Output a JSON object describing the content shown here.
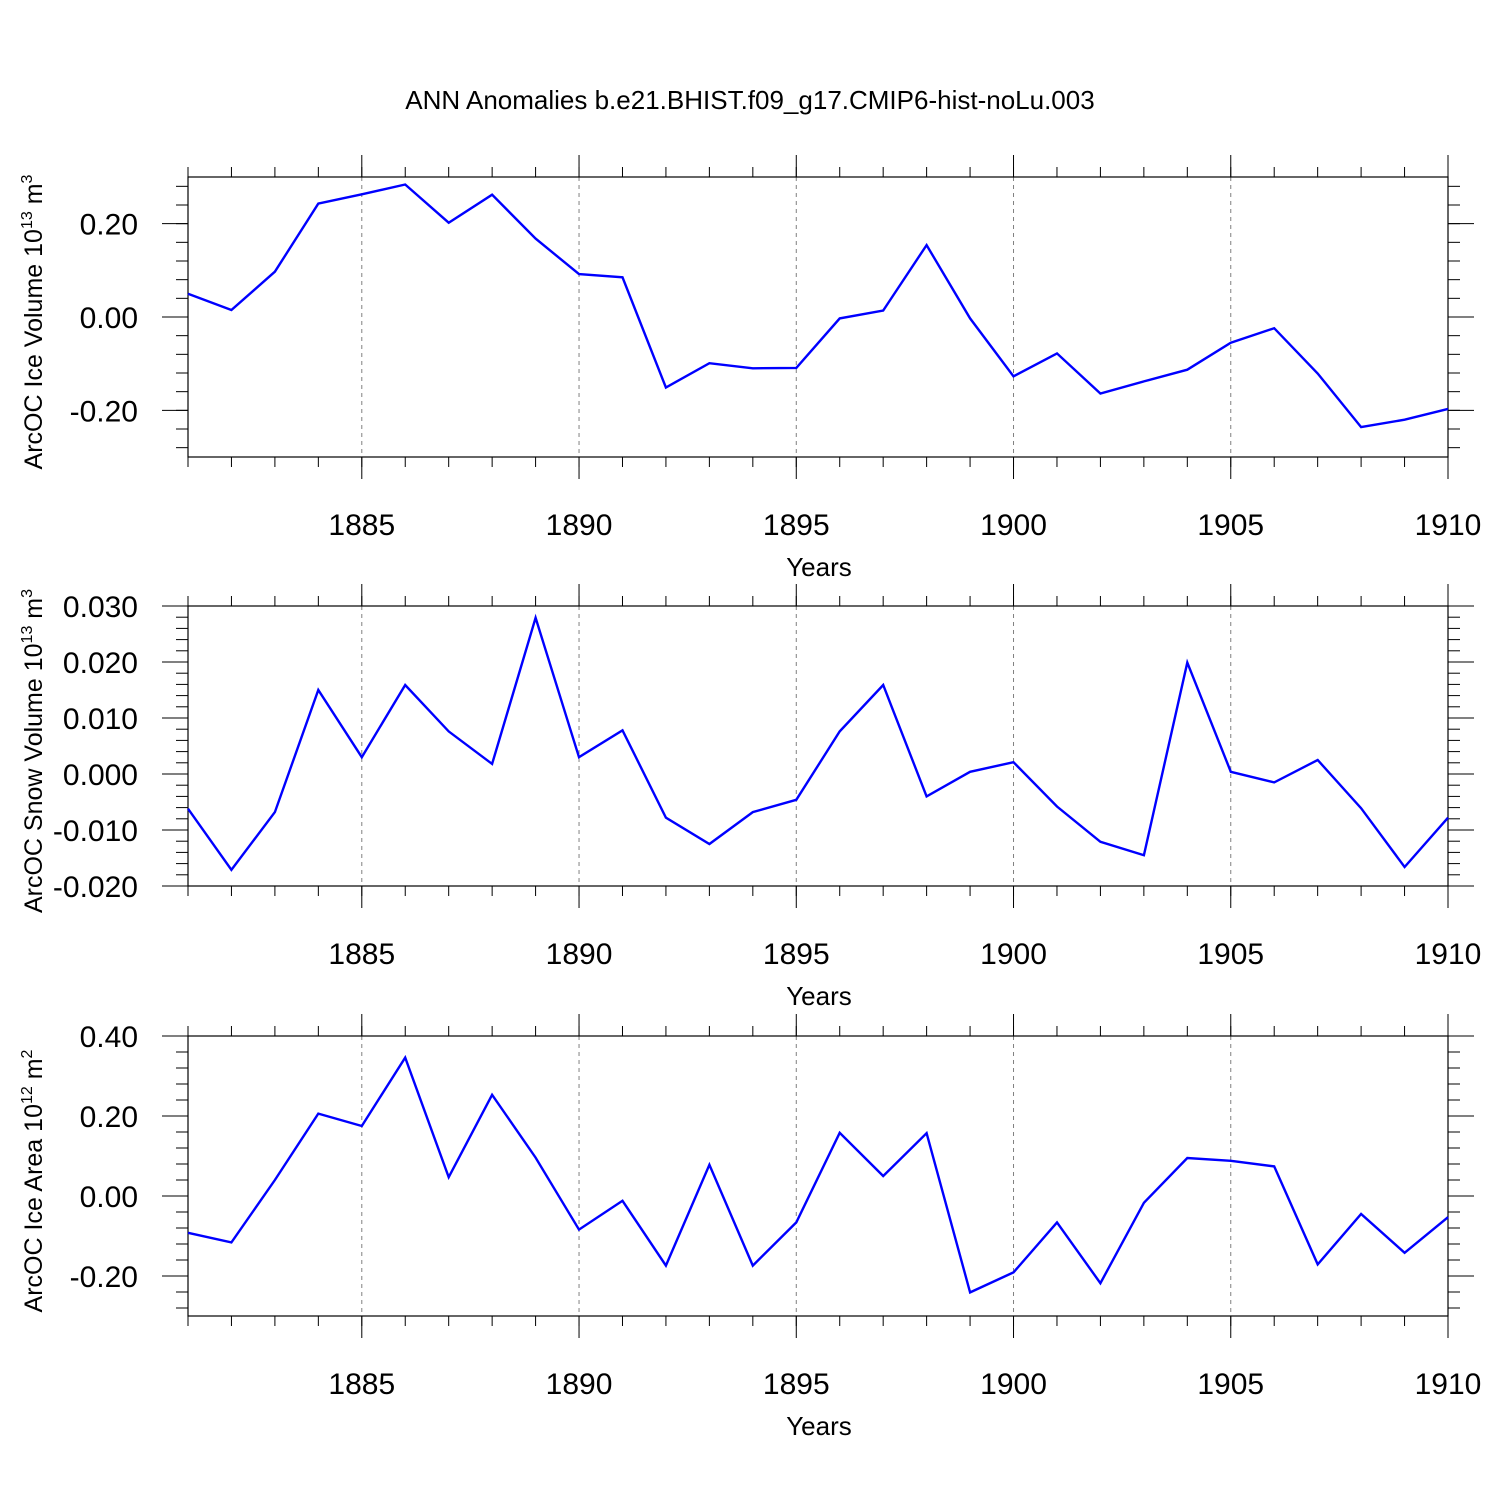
{
  "title": "ANN Anomalies b.e21.BHIST.f09_g17.CMIP6-hist-noLu.003",
  "colors": {
    "line": "#0000ff",
    "axis": "#000000",
    "grid": "#808080"
  },
  "chart_data": [
    {
      "type": "line",
      "ylabel": {
        "main": "ArcOC Ice Volume 10",
        "sup": "13",
        "unit": " m",
        "unit_sup": "3"
      },
      "xlabel": "Years",
      "xlim": [
        1881,
        1910
      ],
      "ylim": [
        -0.3,
        0.3
      ],
      "xticks": [
        1885,
        1890,
        1895,
        1900,
        1905,
        1910
      ],
      "xtick_labels": [
        "1885",
        "1890",
        "1895",
        "1900",
        "1905",
        "1910"
      ],
      "yticks": [
        0.2,
        0.0,
        -0.2
      ],
      "ytick_labels": [
        "0.20",
        "0.00",
        "-0.20"
      ],
      "grid": "vertical dashed at major x ticks",
      "x": [
        1881,
        1882,
        1883,
        1884,
        1885,
        1886,
        1887,
        1888,
        1889,
        1890,
        1891,
        1892,
        1893,
        1894,
        1895,
        1896,
        1897,
        1898,
        1899,
        1900,
        1901,
        1902,
        1903,
        1904,
        1905,
        1906,
        1907,
        1908,
        1909,
        1910
      ],
      "values": [
        0.05,
        0.015,
        0.097,
        0.243,
        0.263,
        0.284,
        0.202,
        0.262,
        0.168,
        0.092,
        0.085,
        -0.151,
        -0.099,
        -0.11,
        -0.109,
        -0.003,
        0.014,
        0.154,
        -0.003,
        -0.127,
        -0.078,
        -0.164,
        -0.138,
        -0.113,
        -0.055,
        -0.024,
        -0.121,
        -0.236,
        -0.22,
        -0.197
      ]
    },
    {
      "type": "line",
      "ylabel": {
        "main": "ArcOC Snow Volume 10",
        "sup": "13",
        "unit": " m",
        "unit_sup": "3"
      },
      "xlabel": "Years",
      "xlim": [
        1881,
        1910
      ],
      "ylim": [
        -0.02,
        0.03
      ],
      "xticks": [
        1885,
        1890,
        1895,
        1900,
        1905,
        1910
      ],
      "xtick_labels": [
        "1885",
        "1890",
        "1895",
        "1900",
        "1905",
        "1910"
      ],
      "yticks": [
        0.03,
        0.02,
        0.01,
        0.0,
        -0.01,
        -0.02
      ],
      "ytick_labels": [
        "0.030",
        "0.020",
        "0.010",
        "0.000",
        "-0.010",
        "-0.020"
      ],
      "grid": "vertical dashed at major x ticks",
      "x": [
        1881,
        1882,
        1883,
        1884,
        1885,
        1886,
        1887,
        1888,
        1889,
        1890,
        1891,
        1892,
        1893,
        1894,
        1895,
        1896,
        1897,
        1898,
        1899,
        1900,
        1901,
        1902,
        1903,
        1904,
        1905,
        1906,
        1907,
        1908,
        1909,
        1910
      ],
      "values": [
        -0.0062,
        -0.0171,
        -0.0068,
        0.015,
        0.003,
        0.0159,
        0.0076,
        0.0018,
        0.0279,
        0.003,
        0.0078,
        -0.0078,
        -0.0125,
        -0.0068,
        -0.0046,
        0.0076,
        0.0159,
        -0.004,
        0.0004,
        0.0021,
        -0.0058,
        -0.0121,
        -0.0145,
        0.0199,
        0.0004,
        -0.0015,
        0.0025,
        -0.0061,
        -0.0166,
        -0.0078
      ]
    },
    {
      "type": "line",
      "ylabel": {
        "main": "ArcOC Ice Area 10",
        "sup": "12",
        "unit": " m",
        "unit_sup": "2"
      },
      "xlabel": "Years",
      "xlim": [
        1881,
        1910
      ],
      "ylim": [
        -0.3,
        0.4
      ],
      "xticks": [
        1885,
        1890,
        1895,
        1900,
        1905,
        1910
      ],
      "xtick_labels": [
        "1885",
        "1890",
        "1895",
        "1900",
        "1905",
        "1910"
      ],
      "yticks": [
        0.4,
        0.2,
        0.0,
        -0.2
      ],
      "ytick_labels": [
        "0.40",
        "0.20",
        "0.00",
        "-0.20"
      ],
      "grid": "vertical dashed at major x ticks",
      "x": [
        1881,
        1882,
        1883,
        1884,
        1885,
        1886,
        1887,
        1888,
        1889,
        1890,
        1891,
        1892,
        1893,
        1894,
        1895,
        1896,
        1897,
        1898,
        1899,
        1900,
        1901,
        1902,
        1903,
        1904,
        1905,
        1906,
        1907,
        1908,
        1909,
        1910
      ],
      "values": [
        -0.092,
        -0.116,
        0.04,
        0.206,
        0.175,
        0.346,
        0.047,
        0.253,
        0.096,
        -0.084,
        -0.012,
        -0.174,
        0.078,
        -0.174,
        -0.066,
        0.158,
        0.05,
        0.157,
        -0.241,
        -0.191,
        -0.066,
        -0.218,
        -0.017,
        0.095,
        0.088,
        0.074,
        -0.171,
        -0.045,
        -0.142,
        -0.053
      ]
    }
  ]
}
